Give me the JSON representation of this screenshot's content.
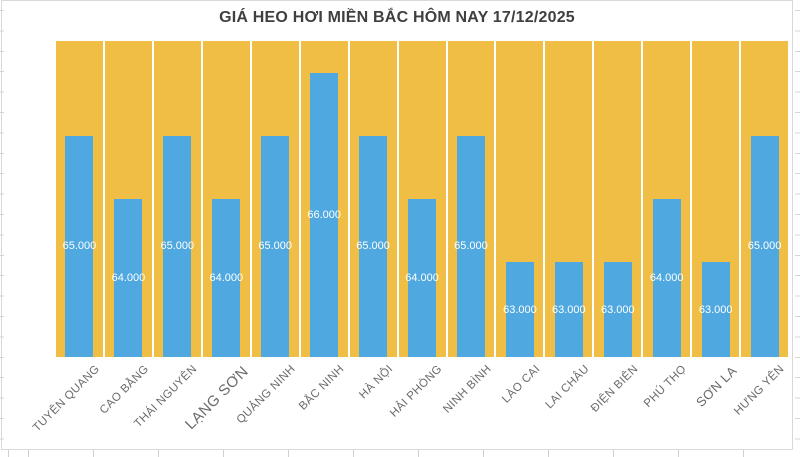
{
  "chart_data": {
    "type": "bar",
    "title": "GIÁ HEO HƠI MIỀN BẮC HÔM NAY 17/12/2025",
    "categories": [
      {
        "label": "TUYÊN QUANG",
        "size": "normal"
      },
      {
        "label": "CAO BẰNG",
        "size": "normal"
      },
      {
        "label": "THÁI NGUYÊN",
        "size": "normal"
      },
      {
        "label": "LẠNG SƠN",
        "size": "large"
      },
      {
        "label": "QUẢNG NINH",
        "size": "normal"
      },
      {
        "label": "BẮC NINH",
        "size": "normal"
      },
      {
        "label": "HÀ NỘI",
        "size": "normal"
      },
      {
        "label": "HẢI PHÒNG",
        "size": "normal"
      },
      {
        "label": "NINH BÌNH",
        "size": "normal"
      },
      {
        "label": "LÀO CAI",
        "size": "normal"
      },
      {
        "label": "LAI CHÂU",
        "size": "normal"
      },
      {
        "label": "ĐIỆN BIÊN",
        "size": "normal"
      },
      {
        "label": "PHÚ THỌ",
        "size": "normal"
      },
      {
        "label": "SƠN LA",
        "size": "medium"
      },
      {
        "label": "HƯNG YÊN",
        "size": "normal"
      }
    ],
    "values": [
      65000,
      64000,
      65000,
      64000,
      65000,
      66000,
      65000,
      64000,
      65000,
      63000,
      63000,
      63000,
      64000,
      63000,
      65000
    ],
    "value_labels": [
      "65.000",
      "64.000",
      "65.000",
      "64.000",
      "65.000",
      "66.000",
      "65.000",
      "64.000",
      "65.000",
      "63.000",
      "63.000",
      "63.000",
      "64.000",
      "63.000",
      "65.000"
    ],
    "ylim": [
      61500,
      66500
    ],
    "xlabel": "",
    "ylabel": "",
    "legend": "none",
    "grid": "vertical-category-separators",
    "colors": {
      "plot_background": "#F0BE45",
      "bar": "#4FA8E0",
      "value_label": "#FFFFFF",
      "title": "#3F3F3F",
      "category_label": "#6A6A6A",
      "separator": "#FFFFFF"
    }
  }
}
